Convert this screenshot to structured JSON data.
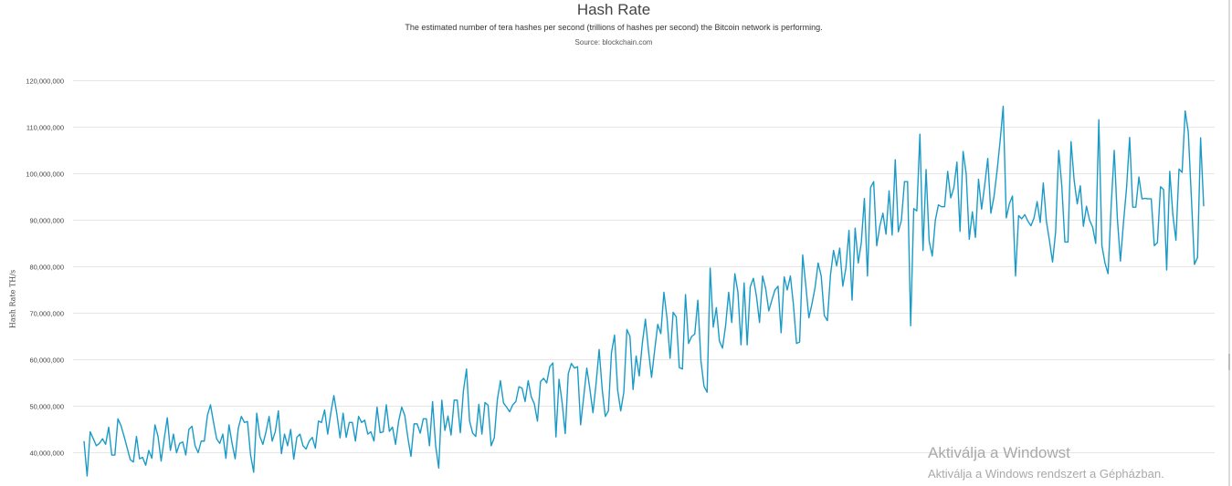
{
  "chart_data": {
    "type": "line",
    "title": "Hash Rate",
    "subtitle": "The estimated number of tera hashes per second (trillions of hashes per second) the Bitcoin network is performing.",
    "source": "Source: blockchain.com",
    "ylabel": "Hash Rate TH/s",
    "xlabel": "",
    "ylim": [
      35000000,
      120000000
    ],
    "yticks": [
      40000000,
      50000000,
      60000000,
      70000000,
      80000000,
      90000000,
      100000000,
      110000000,
      120000000
    ],
    "ytick_labels": [
      "40,000,000",
      "50,000,000",
      "60,000,000",
      "70,000,000",
      "80,000,000",
      "90,000,000",
      "100,000,000",
      "110,000,000",
      "120,000,000"
    ],
    "grid": true,
    "line_color": "#1a9bc7",
    "series": [
      {
        "values": [
          42500000,
          35000000,
          44500000,
          43000000,
          41500000,
          42000000,
          43000000,
          41800000,
          45500000,
          39500000,
          39500000,
          47300000,
          45800000,
          43500000,
          41000000,
          38500000,
          38000000,
          43500000,
          38700000,
          39000000,
          37300000,
          40500000,
          38800000,
          46000000,
          43500000,
          38200000,
          43000000,
          47500000,
          40500000,
          44000000,
          40000000,
          42000000,
          42300000,
          39500000,
          45000000,
          45700000,
          41500000,
          40000000,
          42500000,
          42500000,
          48000000,
          50300000,
          46500000,
          43000000,
          42000000,
          44000000,
          38800000,
          46000000,
          42000000,
          38700000,
          45200000,
          47800000,
          46500000,
          46700000,
          39500000,
          35800000,
          48500000,
          43500000,
          41800000,
          44500000,
          47800000,
          42500000,
          44500000,
          49000000,
          39800000,
          44000000,
          41500000,
          45000000,
          38600000,
          43300000,
          44000000,
          41500000,
          40800000,
          42500000,
          43300000,
          41000000,
          46800000,
          46500000,
          49200000,
          44000000,
          48500000,
          52300000,
          48200000,
          43200000,
          48500000,
          43300000,
          46500000,
          46500000,
          42500000,
          47800000,
          46500000,
          47000000,
          44000000,
          44500000,
          42500000,
          49800000,
          44300000,
          44500000,
          50300000,
          44600000,
          45500000,
          41800000,
          46800000,
          49800000,
          48000000,
          43200000,
          39200000,
          46200000,
          46200000,
          44200000,
          47300000,
          47300000,
          41500000,
          51000000,
          41500000,
          36700000,
          51300000,
          44800000,
          47900000,
          43800000,
          51300000,
          51300000,
          44300000,
          53300000,
          58000000,
          46800000,
          44200000,
          43500000,
          50400000,
          44000000,
          50800000,
          50200000,
          41500000,
          43200000,
          51400000,
          55500000,
          50700000,
          49800000,
          48800000,
          50300000,
          51000000,
          54200000,
          53900000,
          51000000,
          55500000,
          52000000,
          50500000,
          46800000,
          55300000,
          56000000,
          55000000,
          58500000,
          59300000,
          43400000,
          55800000,
          50800000,
          44100000,
          57000000,
          59200000,
          58200000,
          58500000,
          46000000,
          52000000,
          58200000,
          53700000,
          48600000,
          54800000,
          62200000,
          53600000,
          47800000,
          49000000,
          61500000,
          65300000,
          53500000,
          49000000,
          53000000,
          66500000,
          65000000,
          53600000,
          60800000,
          56500000,
          63500000,
          68700000,
          62000000,
          56200000,
          62000000,
          67600000,
          65600000,
          74500000,
          69000000,
          60300000,
          70200000,
          69200000,
          58300000,
          58000000,
          74000000,
          63500000,
          65000000,
          65500000,
          72800000,
          59800000,
          54300000,
          53000000,
          79700000,
          67000000,
          71200000,
          64000000,
          62500000,
          67300000,
          74500000,
          68000000,
          78500000,
          74500000,
          63200000,
          76500000,
          63200000,
          75700000,
          77500000,
          73700000,
          68000000,
          78000000,
          75300000,
          70500000,
          72800000,
          75000000,
          75800000,
          65800000,
          77800000,
          75000000,
          78000000,
          71800000,
          63500000,
          63800000,
          82500000,
          76000000,
          69000000,
          72000000,
          75500000,
          80800000,
          78000000,
          69500000,
          68400000,
          78200000,
          83500000,
          80200000,
          84000000,
          75800000,
          79700000,
          87800000,
          72800000,
          88300000,
          80800000,
          85200000,
          94700000,
          78000000,
          97000000,
          98300000,
          84500000,
          88700000,
          91500000,
          87000000,
          96300000,
          86800000,
          103000000,
          87500000,
          90000000,
          98300000,
          98300000,
          67300000,
          92500000,
          92000000,
          108500000,
          83500000,
          100900000,
          85500000,
          82300000,
          90000000,
          93300000,
          92900000,
          92900000,
          100500000,
          94800000,
          97000000,
          102500000,
          87600000,
          104800000,
          100000000,
          85900000,
          91800000,
          86300000,
          98800000,
          92400000,
          97500000,
          103300000,
          91500000,
          95000000,
          100500000,
          107000000,
          114500000,
          90500000,
          93500000,
          95200000,
          78000000,
          91000000,
          90300000,
          91200000,
          89800000,
          88800000,
          90500000,
          94000000,
          89500000,
          98000000,
          89800000,
          85600000,
          81000000,
          87500000,
          105000000,
          97400000,
          85300000,
          85300000,
          106900000,
          98600000,
          93500000,
          97400000,
          88700000,
          93000000,
          90000000,
          88500000,
          85000000,
          111600000,
          84500000,
          80800000,
          78500000,
          93000000,
          105000000,
          90500000,
          81200000,
          89500000,
          97000000,
          107800000,
          92800000,
          92800000,
          99300000,
          94600000,
          94700000,
          94600000,
          94600000,
          84500000,
          85200000,
          97200000,
          96600000,
          79300000,
          100500000,
          91200000,
          85700000,
          101000000,
          100300000,
          113500000,
          109000000,
          95000000,
          80500000,
          82000000,
          107700000,
          93000000
        ]
      }
    ]
  },
  "watermark": {
    "line1": "Aktiválja a Windowst",
    "line2": "Aktiválja a Windows rendszert a Gépházban."
  }
}
